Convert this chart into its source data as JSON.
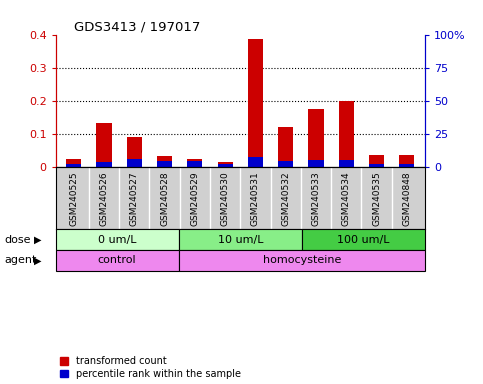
{
  "title": "GDS3413 / 197017",
  "samples": [
    "GSM240525",
    "GSM240526",
    "GSM240527",
    "GSM240528",
    "GSM240529",
    "GSM240530",
    "GSM240531",
    "GSM240532",
    "GSM240533",
    "GSM240534",
    "GSM240535",
    "GSM240848"
  ],
  "red_values": [
    0.025,
    0.133,
    0.09,
    0.033,
    0.025,
    0.015,
    0.388,
    0.12,
    0.175,
    0.2,
    0.037,
    0.038
  ],
  "blue_values": [
    0.01,
    0.016,
    0.025,
    0.018,
    0.018,
    0.01,
    0.03,
    0.018,
    0.022,
    0.022,
    0.01,
    0.01
  ],
  "ylim": [
    0,
    0.4
  ],
  "yticks_left": [
    0,
    0.1,
    0.2,
    0.3,
    0.4
  ],
  "ytick_labels_left": [
    "0",
    "0.1",
    "0.2",
    "0.3",
    "0.4"
  ],
  "yticks_right": [
    0,
    25,
    50,
    75,
    100
  ],
  "ytick_labels_right": [
    "0",
    "25",
    "50",
    "75",
    "100%"
  ],
  "left_axis_color": "#cc0000",
  "right_axis_color": "#0000cc",
  "bar_red_color": "#cc0000",
  "bar_blue_color": "#0000cc",
  "dose_groups": [
    {
      "label": "0 um/L",
      "start": 0,
      "end": 4,
      "color": "#ccffcc"
    },
    {
      "label": "10 um/L",
      "start": 4,
      "end": 8,
      "color": "#88ee88"
    },
    {
      "label": "100 um/L",
      "start": 8,
      "end": 12,
      "color": "#44cc44"
    }
  ],
  "agent_groups": [
    {
      "label": "control",
      "start": 0,
      "end": 4,
      "color": "#ee88ee"
    },
    {
      "label": "homocysteine",
      "start": 4,
      "end": 12,
      "color": "#ee88ee"
    }
  ],
  "dose_row_label": "dose",
  "agent_row_label": "agent",
  "legend_items": [
    {
      "color": "#cc0000",
      "label": "transformed count"
    },
    {
      "color": "#0000cc",
      "label": "percentile rank within the sample"
    }
  ],
  "bar_width": 0.5,
  "tick_bg_color": "#d0d0d0",
  "plot_bg_color": "#ffffff",
  "border_color": "#000000"
}
